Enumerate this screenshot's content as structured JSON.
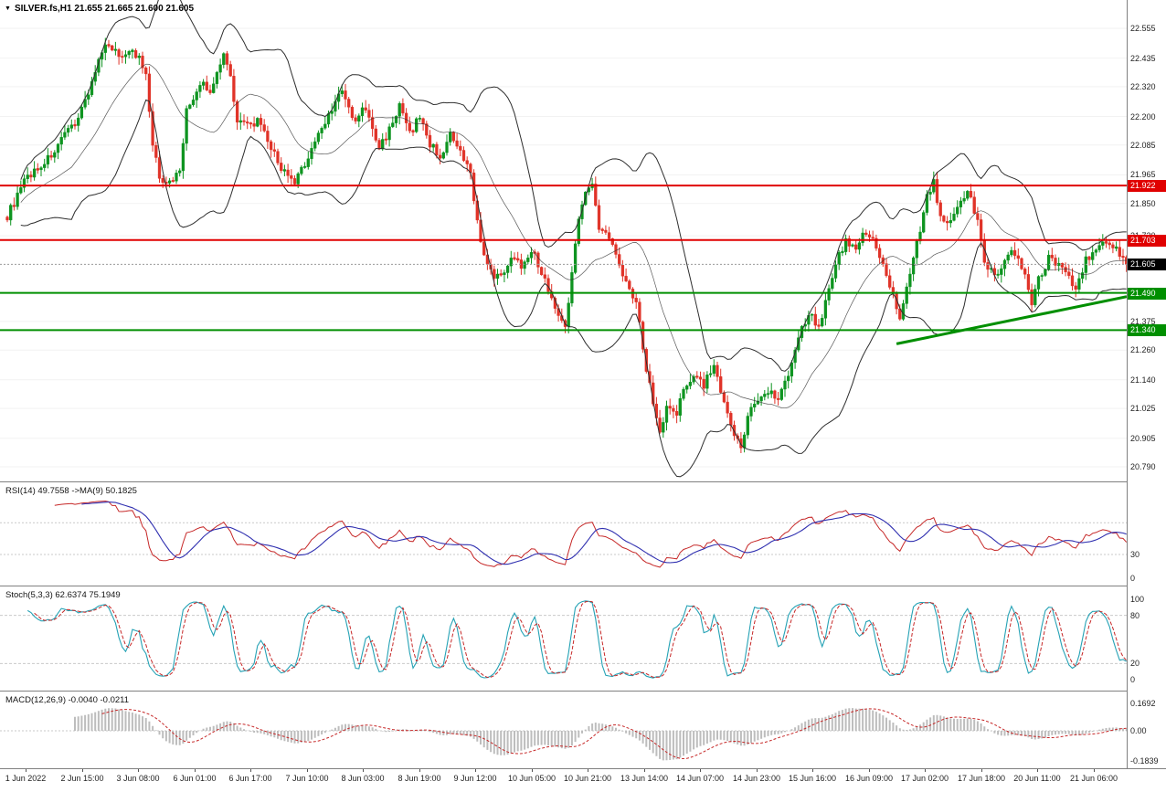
{
  "header": {
    "symbol_timeframe": "SILVER.fs,H1",
    "ohlc": "21.655 21.665 21.600 21.605",
    "dropdown_icon": "▼"
  },
  "panes": {
    "rsi": {
      "label": "RSI(14) 49.7558 ->MA(9) 50.1825",
      "axis_labels": [
        {
          "text": "30",
          "value": 30
        },
        {
          "text": "0",
          "value": 0
        }
      ],
      "levels": [
        70,
        30
      ]
    },
    "stoch": {
      "label": "Stoch(5,3,3) 62.6374 75.1949",
      "axis_labels": [
        {
          "text": "100",
          "value": 100
        },
        {
          "text": "80",
          "value": 80
        },
        {
          "text": "20",
          "value": 20
        },
        {
          "text": "0",
          "value": 0
        }
      ],
      "levels": [
        80,
        20
      ]
    },
    "macd": {
      "label": "MACD(12,26,9) -0.0040 -0.0211",
      "axis_labels": [
        {
          "text": "0.1692",
          "value": 0.1692
        },
        {
          "text": "0.00",
          "value": 0
        },
        {
          "text": "-0.1839",
          "value": -0.1839
        }
      ],
      "levels": [
        0
      ]
    }
  },
  "colors": {
    "bull": "#0e9420",
    "bear": "#e03328",
    "bands": "#2e2e2e",
    "rsi": "#c62828",
    "rsi_ma": "#3030b0",
    "stoch_k": "#25a2b5",
    "stoch_d": "#c62828",
    "macd_hist": "#bdbdbd",
    "macd_signal": "#c62828",
    "separator": "#808080",
    "axis_text": "#1f1f1f",
    "line_red": "#e00000",
    "line_green": "#008f00",
    "current_tag_bg": "#000000"
  },
  "chart_data": {
    "type": "candlestick",
    "symbol": "SILVER.fs",
    "timeframe": "H1",
    "last_ohlc": {
      "open": 21.655,
      "high": 21.665,
      "low": 21.6,
      "close": 21.605
    },
    "price_axis_labels": [
      "22.555",
      "22.435",
      "22.320",
      "22.200",
      "22.085",
      "21.965",
      "21.850",
      "21.720",
      "21.375",
      "21.260",
      "21.140",
      "21.025",
      "20.905",
      "20.790"
    ],
    "time_axis_labels": [
      "1 Jun 2022",
      "2 Jun 15:00",
      "3 Jun 08:00",
      "6 Jun 01:00",
      "6 Jun 17:00",
      "7 Jun 10:00",
      "8 Jun 03:00",
      "8 Jun 19:00",
      "9 Jun 12:00",
      "10 Jun 05:00",
      "10 Jun 21:00",
      "13 Jun 14:00",
      "14 Jun 07:00",
      "14 Jun 23:00",
      "15 Jun 16:00",
      "16 Jun 09:00",
      "17 Jun 02:00",
      "17 Jun 18:00",
      "20 Jun 11:00",
      "21 Jun 06:00"
    ],
    "horizontal_lines": [
      {
        "price": 21.922,
        "label": "21.922",
        "color": "#e00000",
        "width": 2
      },
      {
        "price": 21.703,
        "label": "21.703",
        "color": "#e00000",
        "width": 2
      },
      {
        "price": 21.49,
        "label": "21.490",
        "color": "#008f00",
        "width": 2
      },
      {
        "price": 21.34,
        "label": "21.340",
        "color": "#008f00",
        "width": 2
      }
    ],
    "current_price": {
      "value": 21.605,
      "label": "21.605"
    },
    "trendline": {
      "from_index": 263,
      "from_price": 21.285,
      "to_index": 332,
      "to_price": 21.475,
      "color": "#008f00",
      "width": 3
    },
    "indicators": {
      "bollinger_bands": {
        "period": 20,
        "deviation": 2
      },
      "rsi": {
        "period": 14,
        "value": 49.7558,
        "ma_period": 9,
        "ma_value": 50.1825
      },
      "stochastic": {
        "params": "5,3,3",
        "k_value": 62.6374,
        "d_value": 75.1949
      },
      "macd": {
        "params": "12,26,9",
        "value": -0.004,
        "signal": -0.0211
      }
    },
    "candle_count": 332,
    "price_path_waypoints": [
      [
        0,
        21.8
      ],
      [
        3,
        21.88
      ],
      [
        6,
        21.96
      ],
      [
        9,
        21.99
      ],
      [
        12,
        22.03
      ],
      [
        15,
        22.08
      ],
      [
        18,
        22.14
      ],
      [
        21,
        22.2
      ],
      [
        24,
        22.3
      ],
      [
        27,
        22.42
      ],
      [
        30,
        22.5
      ],
      [
        33,
        22.44
      ],
      [
        36,
        22.47
      ],
      [
        39,
        22.43
      ],
      [
        41,
        22.36
      ],
      [
        43,
        22.08
      ],
      [
        45,
        21.96
      ],
      [
        48,
        21.93
      ],
      [
        51,
        21.99
      ],
      [
        53,
        22.22
      ],
      [
        56,
        22.3
      ],
      [
        58,
        22.33
      ],
      [
        60,
        22.29
      ],
      [
        62,
        22.38
      ],
      [
        64,
        22.46
      ],
      [
        66,
        22.36
      ],
      [
        68,
        22.19
      ],
      [
        71,
        22.16
      ],
      [
        74,
        22.18
      ],
      [
        77,
        22.1
      ],
      [
        80,
        22.02
      ],
      [
        83,
        21.95
      ],
      [
        85,
        21.93
      ],
      [
        88,
        22.01
      ],
      [
        91,
        22.1
      ],
      [
        94,
        22.18
      ],
      [
        97,
        22.26
      ],
      [
        99,
        22.3
      ],
      [
        101,
        22.23
      ],
      [
        103,
        22.17
      ],
      [
        105,
        22.24
      ],
      [
        107,
        22.19
      ],
      [
        110,
        22.07
      ],
      [
        113,
        22.15
      ],
      [
        116,
        22.24
      ],
      [
        119,
        22.13
      ],
      [
        122,
        22.2
      ],
      [
        125,
        22.09
      ],
      [
        128,
        22.04
      ],
      [
        131,
        22.12
      ],
      [
        134,
        22.05
      ],
      [
        137,
        21.97
      ],
      [
        139,
        21.78
      ],
      [
        141,
        21.63
      ],
      [
        143,
        21.57
      ],
      [
        146,
        21.55
      ],
      [
        149,
        21.64
      ],
      [
        152,
        21.6
      ],
      [
        155,
        21.67
      ],
      [
        158,
        21.57
      ],
      [
        160,
        21.51
      ],
      [
        163,
        21.39
      ],
      [
        165,
        21.37
      ],
      [
        167,
        21.56
      ],
      [
        169,
        21.8
      ],
      [
        171,
        21.91
      ],
      [
        173,
        21.92
      ],
      [
        175,
        21.75
      ],
      [
        178,
        21.71
      ],
      [
        180,
        21.66
      ],
      [
        183,
        21.53
      ],
      [
        186,
        21.46
      ],
      [
        188,
        21.26
      ],
      [
        191,
        21.05
      ],
      [
        193,
        20.93
      ],
      [
        195,
        21.03
      ],
      [
        198,
        21.0
      ],
      [
        200,
        21.1
      ],
      [
        203,
        21.17
      ],
      [
        206,
        21.12
      ],
      [
        209,
        21.2
      ],
      [
        211,
        21.08
      ],
      [
        214,
        20.95
      ],
      [
        217,
        20.87
      ],
      [
        219,
        21.0
      ],
      [
        222,
        21.06
      ],
      [
        225,
        21.1
      ],
      [
        228,
        21.07
      ],
      [
        231,
        21.17
      ],
      [
        234,
        21.31
      ],
      [
        237,
        21.41
      ],
      [
        240,
        21.36
      ],
      [
        242,
        21.45
      ],
      [
        245,
        21.61
      ],
      [
        248,
        21.7
      ],
      [
        251,
        21.66
      ],
      [
        253,
        21.74
      ],
      [
        256,
        21.7
      ],
      [
        259,
        21.6
      ],
      [
        261,
        21.51
      ],
      [
        264,
        21.39
      ],
      [
        267,
        21.56
      ],
      [
        270,
        21.75
      ],
      [
        272,
        21.88
      ],
      [
        274,
        21.93
      ],
      [
        276,
        21.8
      ],
      [
        279,
        21.77
      ],
      [
        282,
        21.85
      ],
      [
        284,
        21.9
      ],
      [
        287,
        21.79
      ],
      [
        289,
        21.6
      ],
      [
        292,
        21.56
      ],
      [
        295,
        21.62
      ],
      [
        297,
        21.67
      ],
      [
        300,
        21.6
      ],
      [
        303,
        21.45
      ],
      [
        305,
        21.54
      ],
      [
        308,
        21.63
      ],
      [
        311,
        21.6
      ],
      [
        314,
        21.55
      ],
      [
        316,
        21.51
      ],
      [
        319,
        21.62
      ],
      [
        322,
        21.67
      ],
      [
        325,
        21.7
      ],
      [
        328,
        21.66
      ],
      [
        331,
        21.605
      ]
    ]
  }
}
